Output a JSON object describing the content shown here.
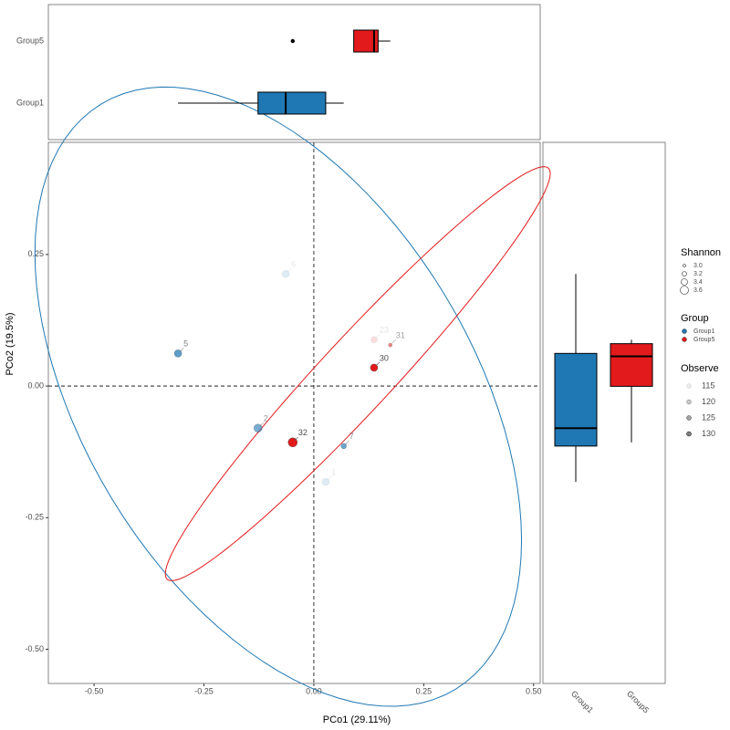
{
  "chart_data": {
    "type": "scatter",
    "x_label": "PCo1 (29.11%)",
    "y_label": "PCo2 (19.5%)",
    "xlim": [
      -0.604,
      0.515
    ],
    "ylim": [
      -0.565,
      0.463
    ],
    "xticks": [
      {
        "value": -0.5,
        "label": "-0.50"
      },
      {
        "value": -0.25,
        "label": "-0.25"
      },
      {
        "value": 0,
        "label": "0.00"
      },
      {
        "value": 0.25,
        "label": "0.25"
      },
      {
        "value": 0.5,
        "label": "0.50"
      }
    ],
    "yticks": [
      {
        "value": -0.5,
        "label": "-0.50"
      },
      {
        "value": -0.25,
        "label": "-0.25"
      },
      {
        "value": 0,
        "label": "0.00"
      },
      {
        "value": 0.25,
        "label": "0.25"
      }
    ],
    "series": [
      {
        "name": "Group1",
        "color": "#1f78b4",
        "labels": [
          "5",
          "6",
          "2",
          "7",
          "1"
        ],
        "x": [
          -0.309,
          -0.064,
          -0.127,
          0.068,
          0.027
        ],
        "y": [
          0.062,
          0.213,
          -0.08,
          -0.114,
          -0.182
        ],
        "shannon": [
          3.4,
          3.4,
          3.5,
          3.2,
          3.4
        ],
        "observe": [
          125,
          115,
          123,
          124,
          115
        ]
      },
      {
        "name": "Group5",
        "color": "#e31a1c",
        "labels": [
          "23",
          "31",
          "30",
          "32"
        ],
        "x": [
          0.137,
          0.174,
          0.137,
          -0.048
        ],
        "y": [
          0.088,
          0.078,
          0.035,
          -0.107
        ],
        "shannon": [
          3.3,
          3.0,
          3.4,
          3.6
        ],
        "observe": [
          115,
          122,
          130,
          130
        ]
      }
    ],
    "shannon_legend": {
      "title": "Shannon",
      "values": [
        {
          "value": 3,
          "label": "3.0"
        },
        {
          "value": 3.2,
          "label": "3.2"
        },
        {
          "value": 3.4,
          "label": "3.4"
        },
        {
          "value": 3.6,
          "label": "3.6"
        }
      ]
    },
    "group_legend": {
      "title": "Group"
    },
    "observe_legend": {
      "title": "Observe",
      "values": [
        115,
        120,
        125,
        130
      ]
    }
  }
}
